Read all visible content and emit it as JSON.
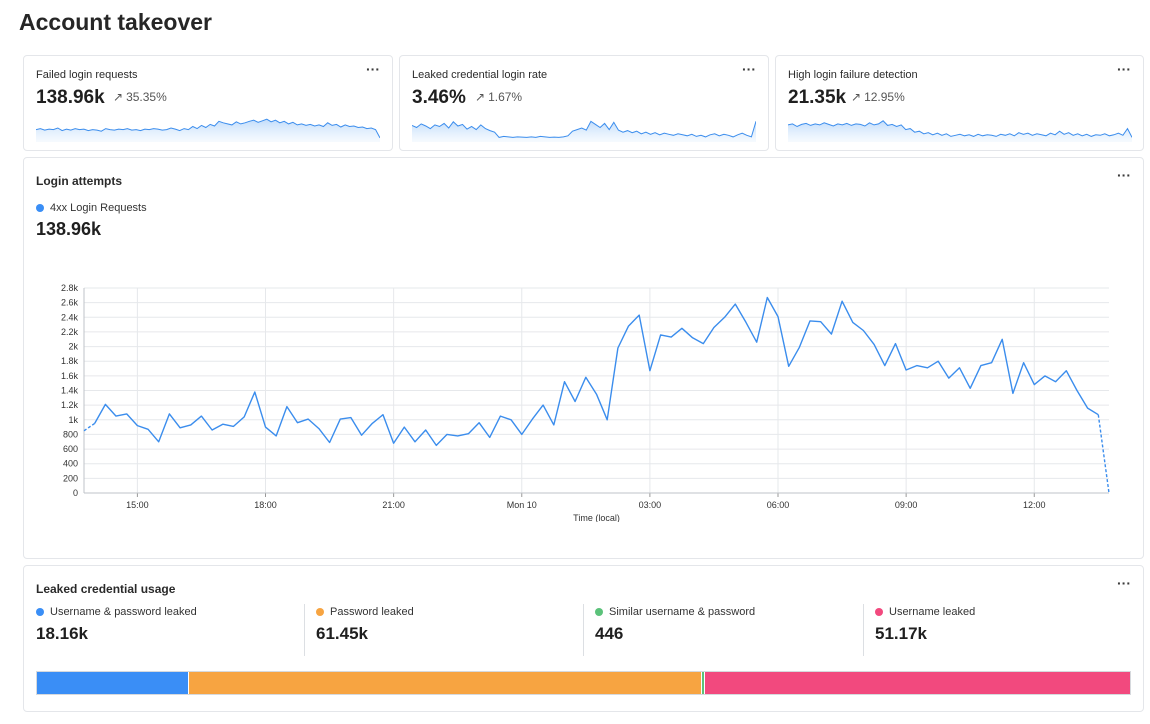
{
  "page": {
    "title": "Account takeover"
  },
  "kpis": [
    {
      "title": "Failed login requests",
      "value": "138.96k",
      "delta": "35.35%",
      "spark": [
        0.4,
        0.44,
        0.38,
        0.42,
        0.4,
        0.46,
        0.36,
        0.42,
        0.38,
        0.44,
        0.4,
        0.42,
        0.36,
        0.4,
        0.38,
        0.34,
        0.44,
        0.4,
        0.38,
        0.42,
        0.4,
        0.44,
        0.38,
        0.4,
        0.36,
        0.42,
        0.4,
        0.44,
        0.42,
        0.38,
        0.4,
        0.46,
        0.42,
        0.36,
        0.44,
        0.4,
        0.52,
        0.44,
        0.56,
        0.48,
        0.6,
        0.54,
        0.72,
        0.66,
        0.62,
        0.58,
        0.7,
        0.62,
        0.66,
        0.72,
        0.76,
        0.68,
        0.74,
        0.8,
        0.7,
        0.76,
        0.66,
        0.72,
        0.62,
        0.68,
        0.58,
        0.62,
        0.56,
        0.6,
        0.54,
        0.58,
        0.52,
        0.66,
        0.56,
        0.6,
        0.5,
        0.58,
        0.52,
        0.54,
        0.48,
        0.5,
        0.44,
        0.46,
        0.4,
        0.08
      ]
    },
    {
      "title": "Leaked credential login rate",
      "value": "3.46%",
      "delta": "1.67%",
      "spark": [
        0.56,
        0.48,
        0.62,
        0.54,
        0.44,
        0.58,
        0.52,
        0.64,
        0.46,
        0.7,
        0.54,
        0.6,
        0.42,
        0.52,
        0.4,
        0.58,
        0.44,
        0.36,
        0.3,
        0.1,
        0.14,
        0.12,
        0.1,
        0.12,
        0.11,
        0.1,
        0.12,
        0.1,
        0.14,
        0.12,
        0.1,
        0.11,
        0.1,
        0.12,
        0.16,
        0.34,
        0.4,
        0.46,
        0.38,
        0.72,
        0.6,
        0.48,
        0.64,
        0.4,
        0.68,
        0.38,
        0.3,
        0.36,
        0.28,
        0.34,
        0.24,
        0.3,
        0.22,
        0.28,
        0.2,
        0.26,
        0.22,
        0.18,
        0.24,
        0.2,
        0.16,
        0.22,
        0.14,
        0.18,
        0.12,
        0.2,
        0.24,
        0.16,
        0.22,
        0.18,
        0.12,
        0.2,
        0.26,
        0.18,
        0.12,
        0.72
      ]
    },
    {
      "title": "High login failure detection",
      "value": "21.35k",
      "delta": "12.95%",
      "spark": [
        0.58,
        0.62,
        0.52,
        0.6,
        0.64,
        0.56,
        0.62,
        0.58,
        0.66,
        0.6,
        0.54,
        0.62,
        0.58,
        0.64,
        0.56,
        0.62,
        0.6,
        0.54,
        0.66,
        0.58,
        0.62,
        0.74,
        0.56,
        0.6,
        0.52,
        0.58,
        0.4,
        0.44,
        0.3,
        0.34,
        0.24,
        0.28,
        0.2,
        0.26,
        0.18,
        0.24,
        0.14,
        0.18,
        0.22,
        0.16,
        0.2,
        0.14,
        0.22,
        0.16,
        0.2,
        0.18,
        0.14,
        0.22,
        0.18,
        0.24,
        0.16,
        0.28,
        0.22,
        0.26,
        0.18,
        0.24,
        0.2,
        0.16,
        0.26,
        0.2,
        0.34,
        0.22,
        0.28,
        0.18,
        0.24,
        0.16,
        0.22,
        0.14,
        0.2,
        0.18,
        0.24,
        0.16,
        0.2,
        0.26,
        0.18,
        0.44,
        0.1
      ]
    }
  ],
  "login_attempts": {
    "title": "Login attempts",
    "legend": "4xx Login Requests",
    "total": "138.96k",
    "chart_data": {
      "type": "line",
      "title": "Login attempts",
      "xlabel": "Time (local)",
      "ylabel": "",
      "ylim": [
        0,
        2800
      ],
      "yticks": [
        0,
        200,
        400,
        600,
        800,
        1000,
        1200,
        1400,
        1600,
        1800,
        2000,
        2200,
        2400,
        2600,
        2800
      ],
      "ytick_labels": [
        "0",
        "200",
        "400",
        "600",
        "800",
        "1k",
        "1.2k",
        "1.4k",
        "1.6k",
        "1.8k",
        "2k",
        "2.2k",
        "2.4k",
        "2.6k",
        "2.8k"
      ],
      "xlim": [
        13.75,
        37.75
      ],
      "xticks": [
        15,
        18,
        21,
        24,
        27,
        30,
        33,
        36
      ],
      "xtick_labels": [
        "15:00",
        "18:00",
        "21:00",
        "Mon 10",
        "03:00",
        "06:00",
        "09:00",
        "12:00"
      ],
      "series": [
        {
          "name": "4xx Login Requests",
          "color": "#3b8ded",
          "x": [
            13.75,
            14.0,
            14.25,
            14.5,
            14.75,
            15.0,
            15.25,
            15.5,
            15.75,
            16.0,
            16.25,
            16.5,
            16.75,
            17.0,
            17.25,
            17.5,
            17.75,
            18.0,
            18.25,
            18.5,
            18.75,
            19.0,
            19.25,
            19.5,
            19.75,
            20.0,
            20.25,
            20.5,
            20.75,
            21.0,
            21.25,
            21.5,
            21.75,
            22.0,
            22.25,
            22.5,
            22.75,
            23.0,
            23.25,
            23.5,
            23.75,
            24.0,
            24.25,
            24.5,
            24.75,
            25.0,
            25.25,
            25.5,
            25.75,
            26.0,
            26.25,
            26.5,
            26.75,
            27.0,
            27.25,
            27.5,
            27.75,
            28.0,
            28.25,
            28.5,
            28.75,
            29.0,
            29.25,
            29.5,
            29.75,
            30.0,
            30.25,
            30.5,
            30.75,
            31.0,
            31.25,
            31.5,
            31.75,
            32.0,
            32.25,
            32.5,
            32.75,
            33.0,
            33.25,
            33.5,
            33.75,
            34.0,
            34.25,
            34.5,
            34.75,
            35.0,
            35.25,
            35.5,
            35.75,
            36.0,
            36.25,
            36.5,
            36.75,
            37.0,
            37.25,
            37.5,
            37.75
          ],
          "y": [
            850,
            950,
            1210,
            1050,
            1080,
            920,
            870,
            700,
            1080,
            890,
            930,
            1050,
            860,
            940,
            910,
            1040,
            1380,
            900,
            780,
            1180,
            960,
            1010,
            880,
            690,
            1010,
            1030,
            790,
            950,
            1070,
            680,
            900,
            700,
            860,
            650,
            800,
            780,
            810,
            960,
            760,
            1050,
            1000,
            800,
            1010,
            1200,
            930,
            1520,
            1250,
            1580,
            1350,
            1000,
            1980,
            2280,
            2430,
            1670,
            2160,
            2130,
            2250,
            2120,
            2040,
            2260,
            2400,
            2580,
            2330,
            2060,
            2670,
            2410,
            1730,
            1990,
            2350,
            2340,
            2170,
            2620,
            2330,
            2220,
            2030,
            1740,
            2040,
            1680,
            1740,
            1710,
            1800,
            1570,
            1710,
            1430,
            1740,
            1780,
            2100,
            1360,
            1780,
            1480,
            1600,
            1520,
            1670,
            1400,
            1160,
            1070,
            0
          ]
        }
      ]
    }
  },
  "leaked_usage": {
    "title": "Leaked credential usage",
    "items": [
      {
        "label": "Username & password leaked",
        "value": "18.16k",
        "color": "#3a8ef6"
      },
      {
        "label": "Password leaked",
        "value": "61.45k",
        "color": "#f7a441"
      },
      {
        "label": "Similar username & password",
        "value": "446",
        "color": "#5bc27a"
      },
      {
        "label": "Username leaked",
        "value": "51.17k",
        "color": "#f2497e"
      }
    ],
    "bar_fractions": [
      0.1385,
      0.4687,
      0.0034,
      0.3894
    ]
  }
}
